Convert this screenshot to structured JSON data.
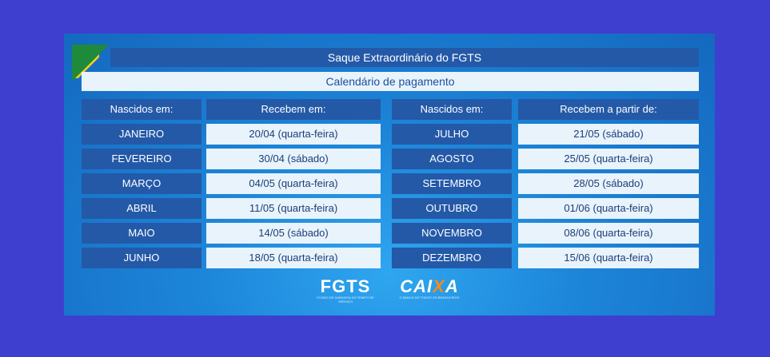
{
  "title": "Saque Extraordinário do FGTS",
  "subtitle": "Calendário de pagamento",
  "headers": {
    "left_month": "Nascidos em:",
    "left_date": "Recebem em:",
    "right_month": "Nascidos em:",
    "right_date": "Recebem a partir de:"
  },
  "left_rows": [
    {
      "month": "JANEIRO",
      "date": "20/04 (quarta-feira)"
    },
    {
      "month": "FEVEREIRO",
      "date": "30/04 (sábado)"
    },
    {
      "month": "MARÇO",
      "date": "04/05 (quarta-feira)"
    },
    {
      "month": "ABRIL",
      "date": "11/05 (quarta-feira)"
    },
    {
      "month": "MAIO",
      "date": "14/05 (sábado)"
    },
    {
      "month": "JUNHO",
      "date": "18/05 (quarta-feira)"
    }
  ],
  "right_rows": [
    {
      "month": "JULHO",
      "date": "21/05 (sábado)"
    },
    {
      "month": "AGOSTO",
      "date": "25/05 (quarta-feira)"
    },
    {
      "month": "SETEMBRO",
      "date": "28/05 (sábado)"
    },
    {
      "month": "OUTUBRO",
      "date": "01/06 (quarta-feira)"
    },
    {
      "month": "NOVEMBRO",
      "date": "08/06 (quarta-feira)"
    },
    {
      "month": "DEZEMBRO",
      "date": "15/06 (quarta-feira)"
    }
  ],
  "logos": {
    "fgts": "FGTS",
    "fgts_tagline": "FUNDO DE GARANTIA DO TEMPO DE SERVIÇO",
    "caixa_prefix": "CAI",
    "caixa_x": "X",
    "caixa_suffix": "A",
    "caixa_tagline": "O BANCO DE TODOS OS BRASILEIROS"
  },
  "colors": {
    "background": "#3f3fcf",
    "panel": "#1d86d9",
    "header_cell": "#2459a8",
    "date_cell": "#e8f3fb",
    "flag_green": "#1f8a3a",
    "flag_yellow": "#f6d219",
    "caixa_orange": "#f28c1a"
  }
}
